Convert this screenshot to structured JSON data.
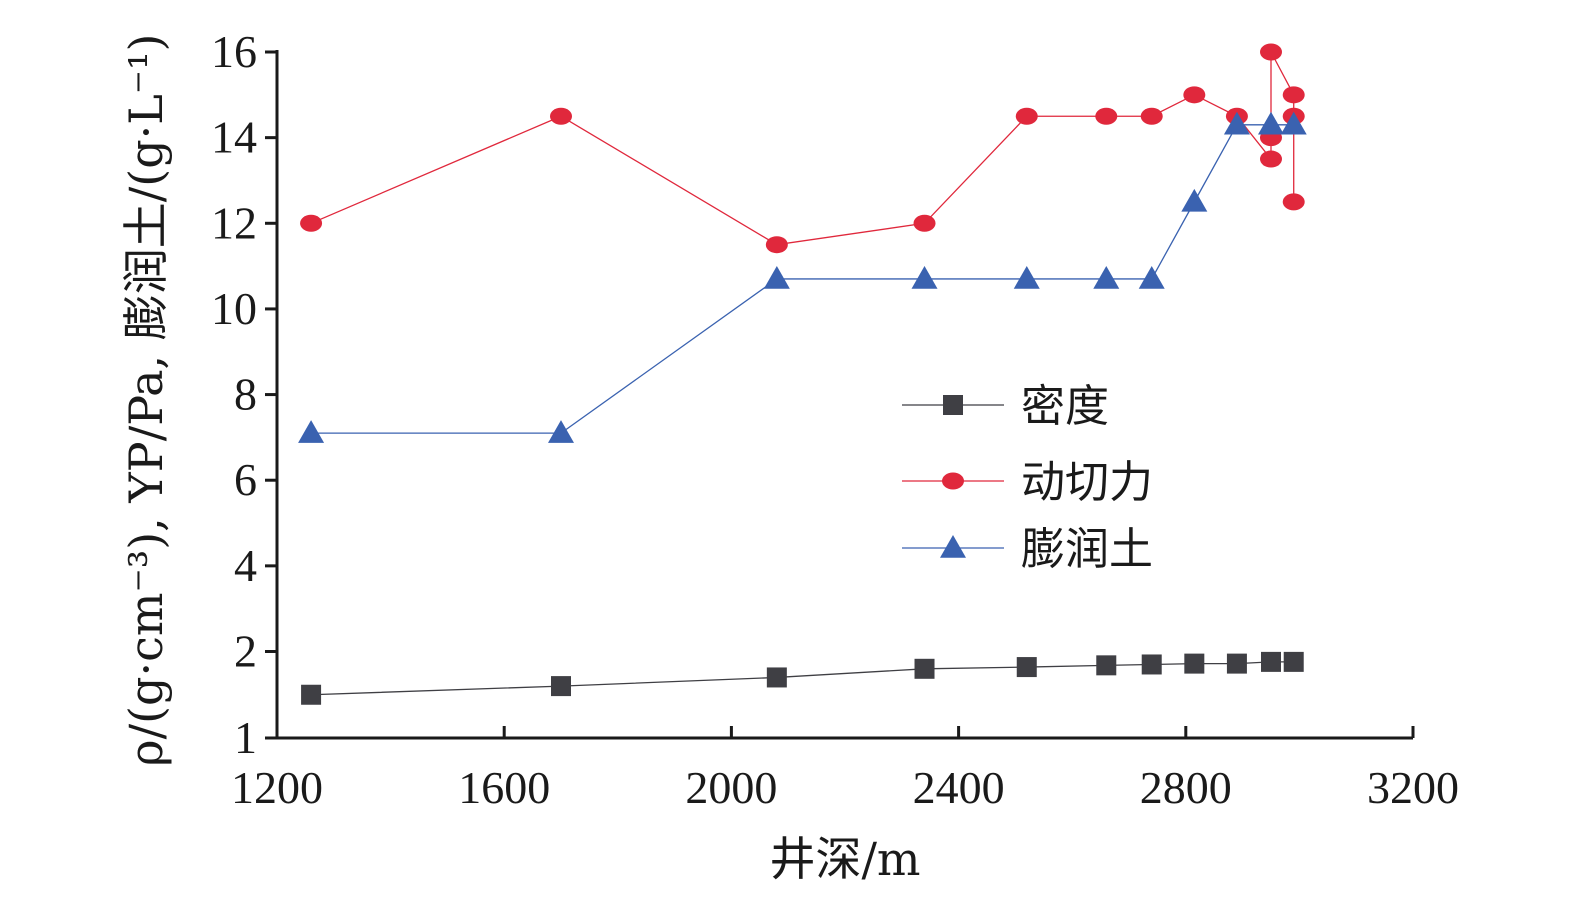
{
  "chart_data": {
    "type": "line",
    "xlabel": "井深/m",
    "ylabel": "ρ/(g·cm⁻³), YP/Pa, 膨润土/(g·L⁻¹)",
    "xlim": [
      1200,
      3200
    ],
    "ylim": [
      1,
      16
    ],
    "x_ticks": [
      1200,
      1600,
      2000,
      2400,
      2800,
      3200
    ],
    "y_ticks": [
      1,
      2,
      4,
      6,
      8,
      10,
      12,
      14,
      16
    ],
    "legend_position": "center-right",
    "series": [
      {
        "name": "密度",
        "marker": "square",
        "color": "#3f3f44",
        "x": [
          1260,
          1700,
          2080,
          2340,
          2520,
          2660,
          2740,
          2815,
          2890,
          2950,
          2990
        ],
        "y": [
          1.5,
          1.6,
          1.7,
          1.8,
          1.82,
          1.84,
          1.85,
          1.86,
          1.86,
          1.88,
          1.88
        ]
      },
      {
        "name": "动切力",
        "marker": "circle",
        "color": "#e0283c",
        "x": [
          1260,
          1700,
          2080,
          2340,
          2520,
          2660,
          2740,
          2815,
          2890,
          2950,
          2950,
          2950,
          2990,
          2990,
          2990
        ],
        "y": [
          12,
          14.5,
          11.5,
          12,
          14.5,
          14.5,
          14.5,
          15,
          14.5,
          13.5,
          14,
          16,
          15,
          14.5,
          12.5
        ]
      },
      {
        "name": "膨润土",
        "marker": "triangle",
        "color": "#3a62b0",
        "x": [
          1260,
          1700,
          2080,
          2340,
          2520,
          2660,
          2740,
          2815,
          2890,
          2950,
          2990
        ],
        "y": [
          7.1,
          7.1,
          10.7,
          10.7,
          10.7,
          10.7,
          10.7,
          12.5,
          14.3,
          14.3,
          14.3
        ]
      }
    ]
  }
}
